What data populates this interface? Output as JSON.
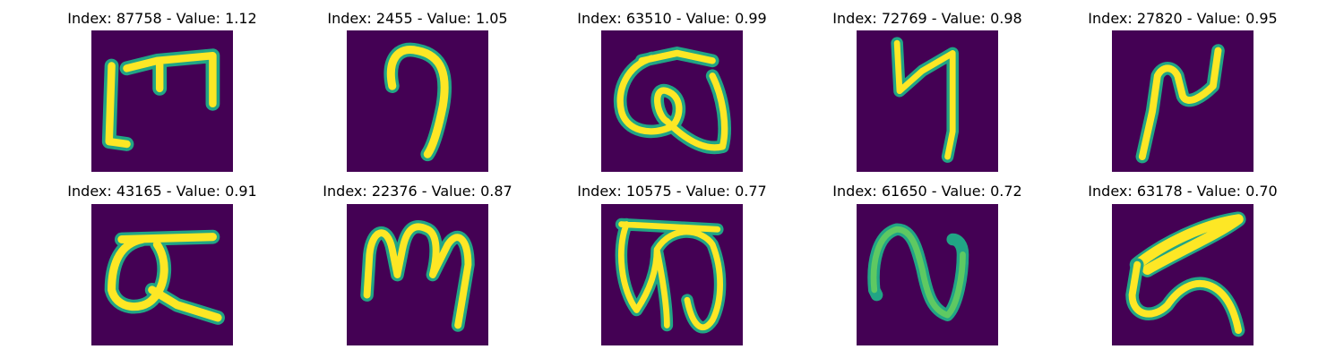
{
  "colors": {
    "background": "#440154",
    "stroke_core": "#fde725",
    "stroke_edge": "#21a585",
    "stroke_mid": "#5ec962"
  },
  "panels": [
    {
      "title": "Index: 87758 - Value: 1.12"
    },
    {
      "title": "Index: 2455 - Value: 1.05"
    },
    {
      "title": "Index: 63510 - Value: 0.99"
    },
    {
      "title": "Index: 72769 - Value: 0.98"
    },
    {
      "title": "Index: 27820 - Value: 0.95"
    },
    {
      "title": "Index: 43165 - Value: 0.91"
    },
    {
      "title": "Index: 22376 - Value: 0.87"
    },
    {
      "title": "Index: 10575 - Value: 0.77"
    },
    {
      "title": "Index: 61650 - Value: 0.72"
    },
    {
      "title": "Index: 63178 - Value: 0.70"
    }
  ]
}
